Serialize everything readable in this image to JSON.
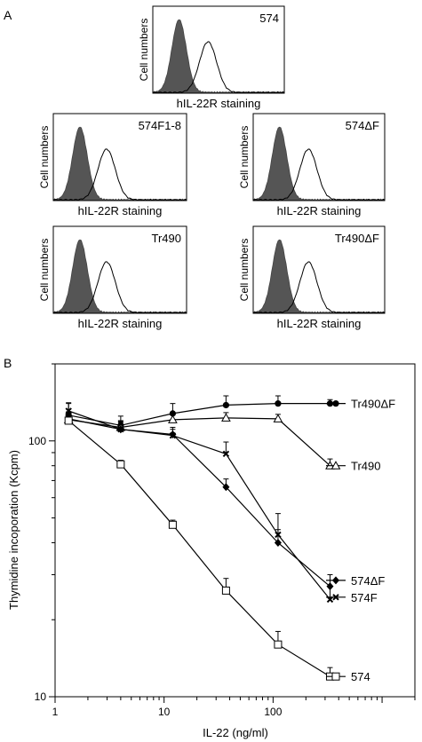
{
  "panel_a": {
    "label": "A",
    "ylabel": "Cell numbers",
    "xlabel": "hIL-22R staining",
    "histograms": [
      {
        "name": "574",
        "peak_control": 0.2,
        "peak_stained": 0.42
      },
      {
        "name": "574F1-8",
        "peak_control": 0.2,
        "peak_stained": 0.4
      },
      {
        "name": "574ΔF",
        "peak_control": 0.2,
        "peak_stained": 0.42
      },
      {
        "name": "Tr490",
        "peak_control": 0.2,
        "peak_stained": 0.4
      },
      {
        "name": "Tr490ΔF",
        "peak_control": 0.2,
        "peak_stained": 0.42
      }
    ]
  },
  "chart_data": {
    "type": "line",
    "panel_label": "B",
    "xlabel": "IL-22 (ng/ml)",
    "ylabel": "Thymidine incoporation (Kcpm)",
    "x_scale": "log",
    "y_scale": "log",
    "xlim": [
      1,
      2000
    ],
    "ylim": [
      10,
      200
    ],
    "x_ticks": [
      1,
      10,
      100
    ],
    "y_ticks": [
      10,
      100
    ],
    "x": [
      1.33,
      4,
      12,
      37,
      111,
      333
    ],
    "series": [
      {
        "name": "Tr490ΔF",
        "marker": "filled-circle",
        "values": [
          126,
          115,
          128,
          138,
          140,
          140
        ],
        "errors": [
          14,
          10,
          12,
          12,
          10,
          5
        ]
      },
      {
        "name": "Tr490",
        "marker": "open-triangle",
        "values": [
          121,
          113,
          121,
          123,
          122,
          80
        ],
        "errors": [
          8,
          7,
          6,
          6,
          5,
          5
        ]
      },
      {
        "name": "574ΔF",
        "marker": "filled-diamond",
        "values": [
          122,
          111,
          106,
          66,
          40,
          27
        ],
        "errors": [
          8,
          7,
          7,
          5,
          5,
          3
        ]
      },
      {
        "name": "574F",
        "marker": "filled-x",
        "values": [
          131,
          111,
          105,
          89,
          43,
          24
        ],
        "errors": [
          10,
          8,
          6,
          10,
          9,
          3
        ]
      },
      {
        "name": "574",
        "marker": "open-square",
        "values": [
          120,
          81,
          47,
          26,
          16,
          12
        ],
        "errors": [
          6,
          3,
          2,
          3,
          2,
          1
        ]
      }
    ]
  }
}
